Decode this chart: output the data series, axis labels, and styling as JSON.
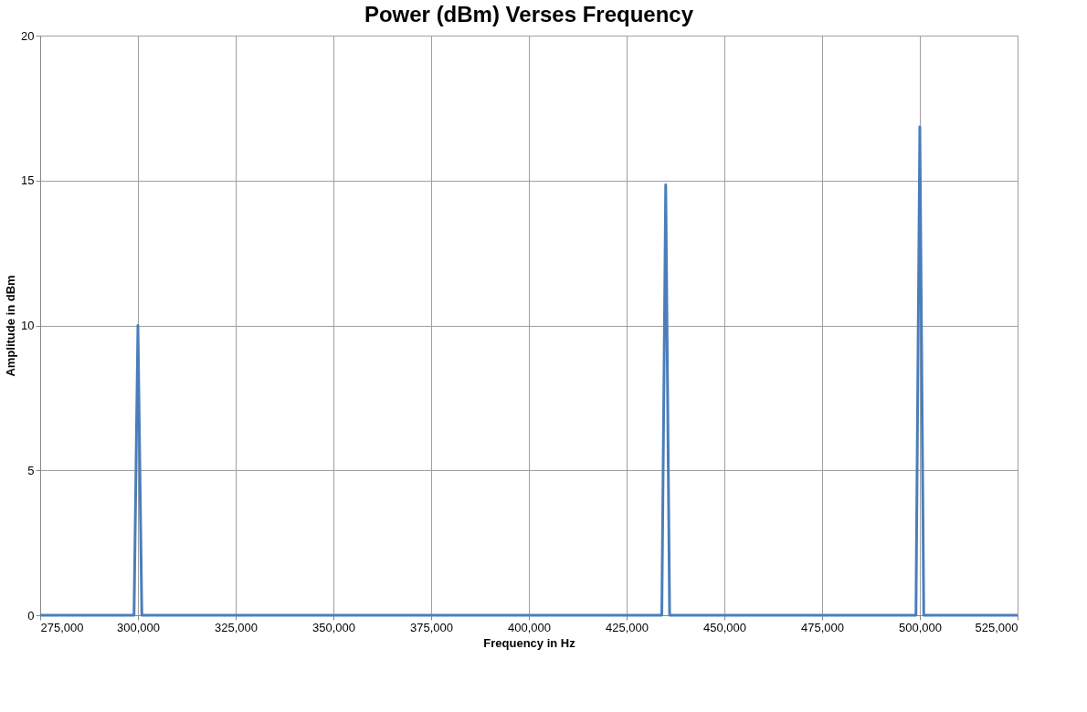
{
  "chart_data": {
    "type": "line",
    "title": "Power (dBm) Verses Frequency",
    "xlabel": "Frequency in Hz",
    "ylabel": "Amplitude in dBm",
    "x": [
      275000,
      299000,
      300000,
      301000,
      434000,
      435000,
      436000,
      499000,
      500000,
      501000,
      525000
    ],
    "series": [
      {
        "color": "#4a7ebb",
        "values": [
          0,
          0,
          10,
          0,
          0,
          14.85,
          0,
          0,
          16.85,
          0,
          0
        ]
      }
    ],
    "xlim": [
      275000,
      525000
    ],
    "xticks": [
      {
        "value": 275000,
        "label": "275,000"
      },
      {
        "value": 300000,
        "label": "300,000"
      },
      {
        "value": 325000,
        "label": "325,000"
      },
      {
        "value": 350000,
        "label": "350,000"
      },
      {
        "value": 375000,
        "label": "375,000"
      },
      {
        "value": 400000,
        "label": "400,000"
      },
      {
        "value": 425000,
        "label": "425,000"
      },
      {
        "value": 450000,
        "label": "450,000"
      },
      {
        "value": 475000,
        "label": "475,000"
      },
      {
        "value": 500000,
        "label": "500,000"
      },
      {
        "value": 525000,
        "label": "525,000"
      }
    ],
    "ylim": [
      0,
      20
    ],
    "yticks": [
      0,
      5,
      10,
      15,
      20
    ],
    "grid": true,
    "legend": false,
    "marker": "none",
    "line_style": "solid"
  }
}
